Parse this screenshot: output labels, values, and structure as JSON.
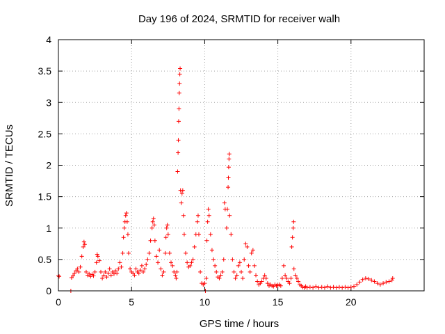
{
  "chart_data": {
    "type": "scatter",
    "title": "Day 196 of 2024, SRMTID for receiver walh",
    "xlabel": "GPS time / hours",
    "ylabel": "SRMTID / TECUs",
    "xlim": [
      0,
      25
    ],
    "ylim": [
      0,
      4
    ],
    "xticks": [
      0,
      5,
      10,
      15,
      20
    ],
    "yticks": [
      0,
      0.5,
      1,
      1.5,
      2,
      2.5,
      3,
      3.5,
      4
    ],
    "xtick_labels": [
      "0",
      "5",
      "10",
      "15",
      "20"
    ],
    "ytick_labels": [
      "0",
      "0.5",
      "1",
      "1.5",
      "2",
      "2.5",
      "3",
      "3.5",
      "4"
    ],
    "grid": true,
    "marker": "plus",
    "series": [
      {
        "name": "SRMTID",
        "color": "#ff0000",
        "points": [
          [
            0.0,
            0.24
          ],
          [
            0.05,
            0.23
          ],
          [
            0.85,
            0.0
          ],
          [
            0.9,
            0.21
          ],
          [
            1.0,
            0.24
          ],
          [
            1.1,
            0.28
          ],
          [
            1.2,
            0.32
          ],
          [
            1.3,
            0.35
          ],
          [
            1.4,
            0.3
          ],
          [
            1.5,
            0.38
          ],
          [
            1.6,
            0.55
          ],
          [
            1.7,
            0.7
          ],
          [
            1.75,
            0.78
          ],
          [
            1.8,
            0.74
          ],
          [
            1.9,
            0.3
          ],
          [
            2.0,
            0.25
          ],
          [
            2.1,
            0.27
          ],
          [
            2.2,
            0.23
          ],
          [
            2.3,
            0.26
          ],
          [
            2.4,
            0.24
          ],
          [
            2.5,
            0.3
          ],
          [
            2.6,
            0.45
          ],
          [
            2.65,
            0.58
          ],
          [
            2.7,
            0.55
          ],
          [
            2.8,
            0.48
          ],
          [
            2.9,
            0.3
          ],
          [
            3.0,
            0.2
          ],
          [
            3.1,
            0.25
          ],
          [
            3.2,
            0.3
          ],
          [
            3.3,
            0.22
          ],
          [
            3.4,
            0.28
          ],
          [
            3.5,
            0.35
          ],
          [
            3.6,
            0.25
          ],
          [
            3.7,
            0.3
          ],
          [
            3.8,
            0.27
          ],
          [
            3.9,
            0.32
          ],
          [
            4.0,
            0.28
          ],
          [
            4.1,
            0.35
          ],
          [
            4.2,
            0.45
          ],
          [
            4.3,
            0.38
          ],
          [
            4.4,
            0.6
          ],
          [
            4.45,
            0.85
          ],
          [
            4.5,
            1.0
          ],
          [
            4.55,
            1.1
          ],
          [
            4.6,
            1.2
          ],
          [
            4.65,
            1.24
          ],
          [
            4.7,
            1.1
          ],
          [
            4.75,
            0.9
          ],
          [
            4.8,
            0.6
          ],
          [
            4.9,
            0.35
          ],
          [
            5.0,
            0.3
          ],
          [
            5.1,
            0.28
          ],
          [
            5.2,
            0.25
          ],
          [
            5.3,
            0.35
          ],
          [
            5.4,
            0.3
          ],
          [
            5.5,
            0.28
          ],
          [
            5.6,
            0.33
          ],
          [
            5.7,
            0.4
          ],
          [
            5.8,
            0.3
          ],
          [
            5.9,
            0.35
          ],
          [
            6.0,
            0.42
          ],
          [
            6.1,
            0.5
          ],
          [
            6.2,
            0.6
          ],
          [
            6.3,
            0.8
          ],
          [
            6.4,
            1.0
          ],
          [
            6.45,
            1.1
          ],
          [
            6.5,
            1.15
          ],
          [
            6.55,
            1.05
          ],
          [
            6.6,
            0.8
          ],
          [
            6.7,
            0.55
          ],
          [
            6.8,
            0.45
          ],
          [
            6.9,
            0.65
          ],
          [
            7.0,
            0.35
          ],
          [
            7.1,
            0.25
          ],
          [
            7.2,
            0.3
          ],
          [
            7.3,
            0.6
          ],
          [
            7.35,
            0.85
          ],
          [
            7.4,
            1.0
          ],
          [
            7.45,
            1.05
          ],
          [
            7.5,
            0.9
          ],
          [
            7.6,
            0.6
          ],
          [
            7.7,
            0.45
          ],
          [
            7.8,
            0.4
          ],
          [
            7.9,
            0.3
          ],
          [
            8.0,
            0.25
          ],
          [
            8.05,
            0.2
          ],
          [
            8.1,
            0.3
          ],
          [
            8.15,
            1.9
          ],
          [
            8.18,
            2.2
          ],
          [
            8.2,
            2.4
          ],
          [
            8.22,
            2.7
          ],
          [
            8.24,
            2.9
          ],
          [
            8.26,
            3.15
          ],
          [
            8.28,
            3.3
          ],
          [
            8.3,
            3.45
          ],
          [
            8.32,
            3.54
          ],
          [
            8.35,
            1.6
          ],
          [
            8.4,
            1.4
          ],
          [
            8.45,
            1.55
          ],
          [
            8.5,
            1.6
          ],
          [
            8.55,
            1.2
          ],
          [
            8.6,
            0.9
          ],
          [
            8.7,
            0.6
          ],
          [
            8.8,
            0.45
          ],
          [
            8.9,
            0.38
          ],
          [
            9.0,
            0.4
          ],
          [
            9.1,
            0.45
          ],
          [
            9.2,
            0.5
          ],
          [
            9.3,
            0.7
          ],
          [
            9.4,
            0.9
          ],
          [
            9.5,
            1.1
          ],
          [
            9.55,
            1.2
          ],
          [
            9.6,
            0.9
          ],
          [
            9.7,
            0.3
          ],
          [
            9.8,
            0.12
          ],
          [
            9.9,
            0.1
          ],
          [
            10.0,
            0.12
          ],
          [
            10.05,
            0.0
          ],
          [
            10.1,
            0.2
          ],
          [
            10.15,
            0.8
          ],
          [
            10.2,
            1.1
          ],
          [
            10.25,
            1.3
          ],
          [
            10.3,
            1.2
          ],
          [
            10.4,
            0.9
          ],
          [
            10.5,
            0.65
          ],
          [
            10.6,
            0.5
          ],
          [
            10.7,
            0.4
          ],
          [
            10.8,
            0.3
          ],
          [
            10.9,
            0.22
          ],
          [
            11.0,
            0.2
          ],
          [
            11.1,
            0.25
          ],
          [
            11.2,
            0.3
          ],
          [
            11.3,
            0.5
          ],
          [
            11.35,
            1.4
          ],
          [
            11.4,
            1.3
          ],
          [
            11.5,
            1.0
          ],
          [
            11.55,
            1.3
          ],
          [
            11.6,
            1.65
          ],
          [
            11.62,
            1.8
          ],
          [
            11.64,
            1.97
          ],
          [
            11.66,
            2.1
          ],
          [
            11.68,
            2.18
          ],
          [
            11.7,
            1.2
          ],
          [
            11.8,
            0.9
          ],
          [
            11.9,
            0.5
          ],
          [
            12.0,
            0.3
          ],
          [
            12.1,
            0.2
          ],
          [
            12.2,
            0.25
          ],
          [
            12.3,
            0.4
          ],
          [
            12.4,
            0.45
          ],
          [
            12.5,
            0.3
          ],
          [
            12.6,
            0.2
          ],
          [
            12.7,
            0.5
          ],
          [
            12.8,
            0.75
          ],
          [
            12.9,
            0.7
          ],
          [
            13.0,
            0.4
          ],
          [
            13.1,
            0.3
          ],
          [
            13.2,
            0.6
          ],
          [
            13.3,
            0.65
          ],
          [
            13.4,
            0.4
          ],
          [
            13.5,
            0.25
          ],
          [
            13.6,
            0.15
          ],
          [
            13.7,
            0.1
          ],
          [
            13.8,
            0.12
          ],
          [
            13.9,
            0.15
          ],
          [
            14.0,
            0.2
          ],
          [
            14.1,
            0.25
          ],
          [
            14.2,
            0.2
          ],
          [
            14.3,
            0.12
          ],
          [
            14.4,
            0.08
          ],
          [
            14.5,
            0.1
          ],
          [
            14.6,
            0.08
          ],
          [
            14.7,
            0.07
          ],
          [
            14.8,
            0.1
          ],
          [
            14.9,
            0.08
          ],
          [
            15.0,
            0.09
          ],
          [
            15.1,
            0.1
          ],
          [
            15.2,
            0.08
          ],
          [
            15.3,
            0.2
          ],
          [
            15.4,
            0.4
          ],
          [
            15.5,
            0.25
          ],
          [
            15.6,
            0.2
          ],
          [
            15.7,
            0.15
          ],
          [
            15.8,
            0.12
          ],
          [
            15.9,
            0.2
          ],
          [
            15.95,
            0.7
          ],
          [
            16.0,
            0.85
          ],
          [
            16.05,
            1.0
          ],
          [
            16.08,
            1.1
          ],
          [
            16.1,
            0.35
          ],
          [
            16.2,
            0.25
          ],
          [
            16.3,
            0.2
          ],
          [
            16.4,
            0.15
          ],
          [
            16.5,
            0.1
          ],
          [
            16.6,
            0.08
          ],
          [
            16.7,
            0.06
          ],
          [
            16.8,
            0.05
          ],
          [
            16.9,
            0.07
          ],
          [
            17.0,
            0.05
          ],
          [
            17.2,
            0.06
          ],
          [
            17.4,
            0.05
          ],
          [
            17.6,
            0.07
          ],
          [
            17.8,
            0.05
          ],
          [
            18.0,
            0.06
          ],
          [
            18.2,
            0.05
          ],
          [
            18.4,
            0.07
          ],
          [
            18.6,
            0.05
          ],
          [
            18.8,
            0.06
          ],
          [
            19.0,
            0.05
          ],
          [
            19.2,
            0.06
          ],
          [
            19.4,
            0.05
          ],
          [
            19.6,
            0.06
          ],
          [
            19.8,
            0.05
          ],
          [
            20.0,
            0.06
          ],
          [
            20.2,
            0.07
          ],
          [
            20.4,
            0.1
          ],
          [
            20.6,
            0.14
          ],
          [
            20.8,
            0.18
          ],
          [
            21.0,
            0.2
          ],
          [
            21.2,
            0.19
          ],
          [
            21.4,
            0.17
          ],
          [
            21.6,
            0.15
          ],
          [
            21.8,
            0.12
          ],
          [
            22.0,
            0.1
          ],
          [
            22.2,
            0.12
          ],
          [
            22.4,
            0.14
          ],
          [
            22.6,
            0.15
          ],
          [
            22.8,
            0.17
          ],
          [
            22.85,
            0.2
          ]
        ]
      }
    ]
  }
}
